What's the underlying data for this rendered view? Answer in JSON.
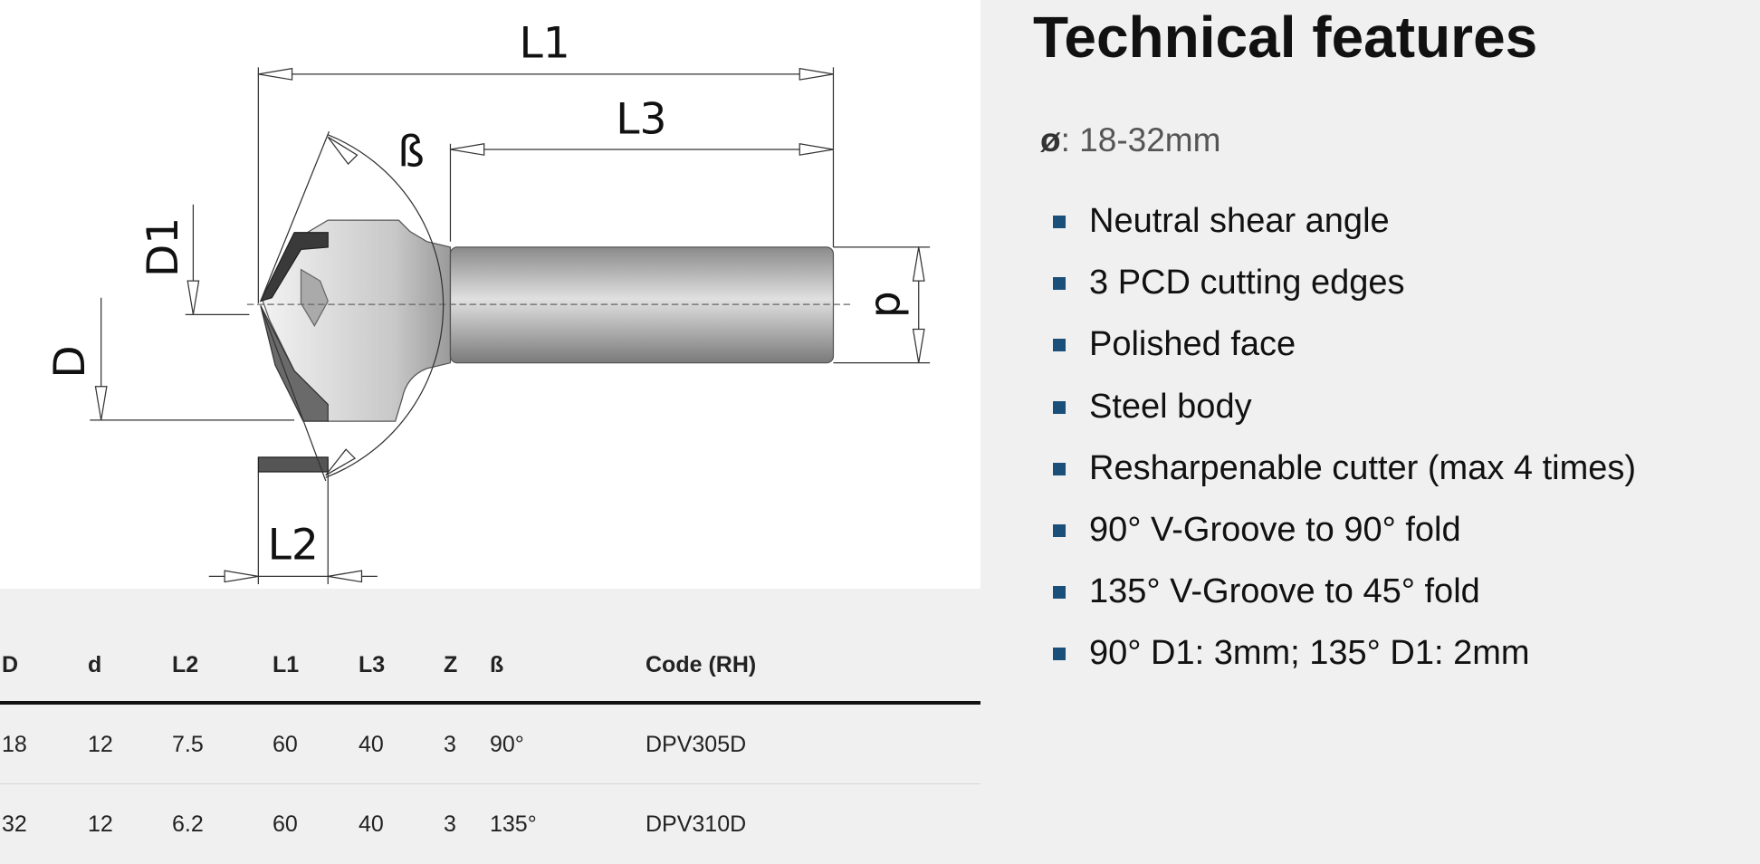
{
  "drawing": {
    "labels": [
      "L1",
      "L3",
      "ß",
      "D1",
      "D",
      "d",
      "L2"
    ]
  },
  "table": {
    "headers": [
      "D",
      "d",
      "L2",
      "L1",
      "L3",
      "Z",
      "ß",
      "Code (RH)"
    ],
    "rows": [
      [
        "18",
        "12",
        "7.5",
        "60",
        "40",
        "3",
        "90°",
        "DPV305D"
      ],
      [
        "32",
        "12",
        "6.2",
        "60",
        "40",
        "3",
        "135°",
        "DPV310D"
      ]
    ]
  },
  "features": {
    "title": "Technical features",
    "diameter": {
      "symbol": "ø",
      "text": ": 18-32mm"
    },
    "items": [
      "Neutral shear angle",
      "3 PCD cutting edges",
      "Polished face",
      "Steel body",
      "Resharpenable cutter (max 4 times)",
      "90° V-Groove to 90° fold",
      "135° V-Groove to 45° fold",
      "90° D1: 3mm; 135° D1: 2mm"
    ]
  }
}
